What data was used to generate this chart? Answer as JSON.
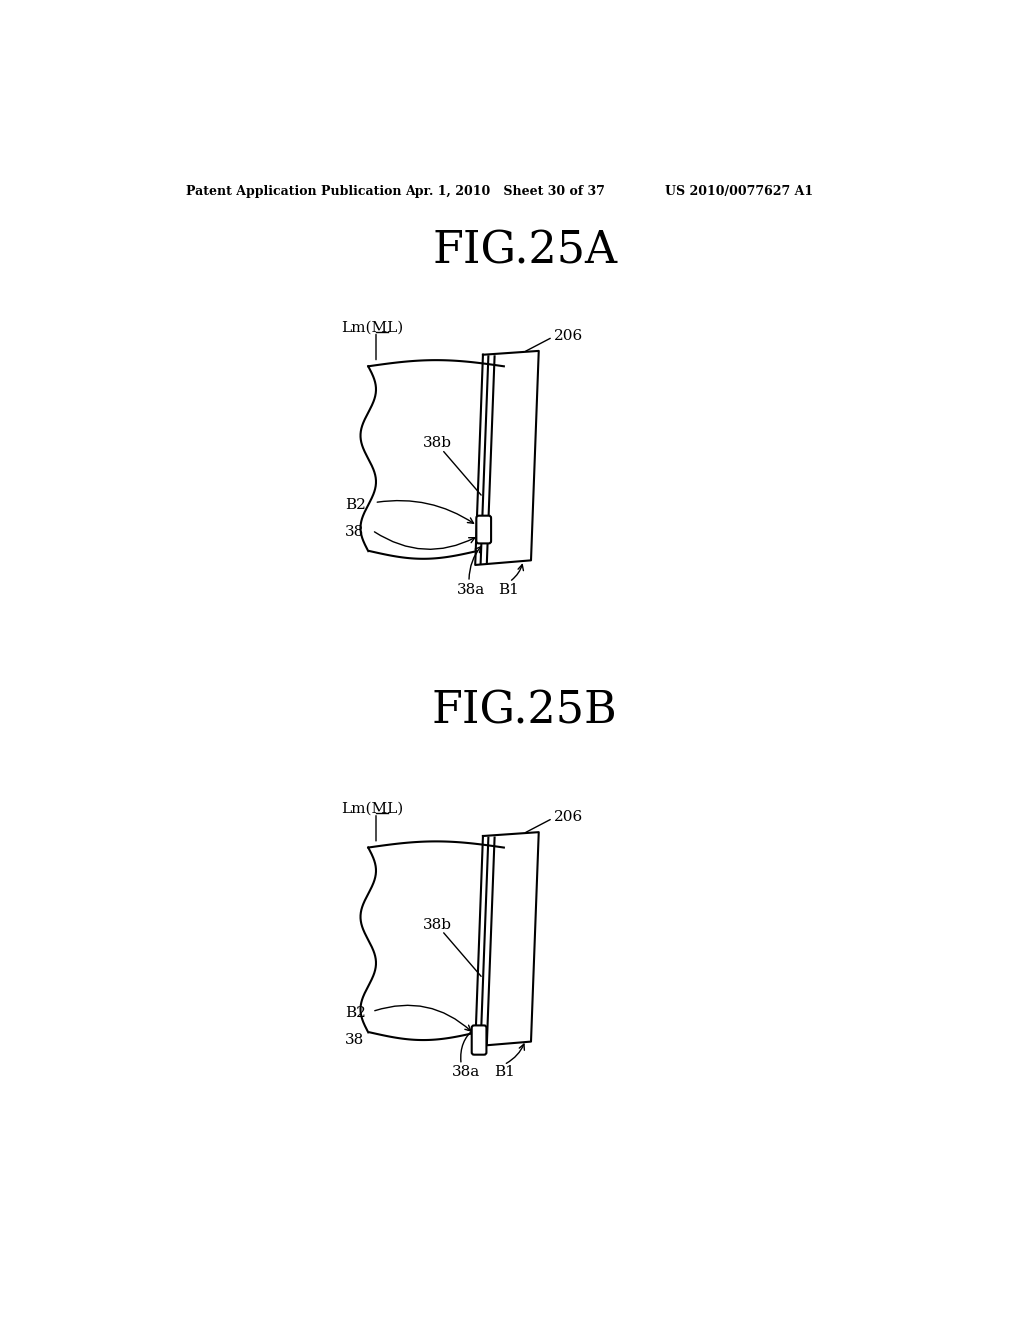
{
  "background_color": "#ffffff",
  "header_left": "Patent Application Publication",
  "header_mid": "Apr. 1, 2010   Sheet 30 of 37",
  "header_right": "US 2010/0077627 A1",
  "fig_title_A": "FIG.25A",
  "fig_title_B": "FIG.25B",
  "line_color": "#000000",
  "text_color": "#000000",
  "lw": 1.5
}
